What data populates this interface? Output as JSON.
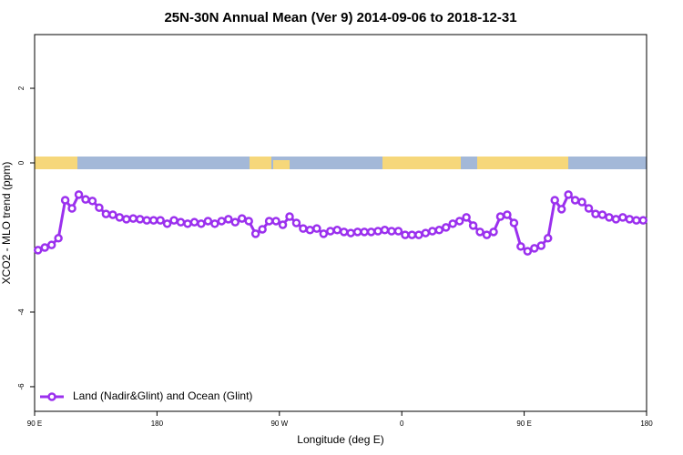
{
  "chart_data": {
    "type": "line",
    "title": "25N-30N Annual Mean (Ver 9)   2014-09-06 to 2018-12-31",
    "x_label": "Longitude (deg E)",
    "y_label": "XCO2 - MLO trend (ppm)",
    "xlim": [
      90,
      540
    ],
    "ylim": [
      -6.66,
      3.44
    ],
    "xticks": [
      {
        "value": 90,
        "label": "90 E"
      },
      180,
      {
        "value": 270,
        "label": "90 W"
      },
      {
        "value": 360,
        "label": "0"
      },
      {
        "value": 450,
        "label": "90 E"
      },
      {
        "value": 540,
        "label": "180"
      }
    ],
    "yticks": [
      -6,
      -4,
      0,
      2
    ],
    "legend_position": "bottom-left",
    "x": [
      92.5,
      97.5,
      102.5,
      107.5,
      112.5,
      117.5,
      122.5,
      127.5,
      132.5,
      137.5,
      142.5,
      147.5,
      152.5,
      157.5,
      162.5,
      167.5,
      172.5,
      177.5,
      182.5,
      187.5,
      192.5,
      197.5,
      202.5,
      207.5,
      212.5,
      217.5,
      222.5,
      227.5,
      232.5,
      237.5,
      242.5,
      247.5,
      252.5,
      257.5,
      262.5,
      267.5,
      272.5,
      277.5,
      282.5,
      287.5,
      292.5,
      297.5,
      302.5,
      307.5,
      312.5,
      317.5,
      322.5,
      327.5,
      332.5,
      337.5,
      342.5,
      347.5,
      352.5,
      357.5,
      362.5,
      367.5,
      372.5,
      377.5,
      382.5,
      387.5,
      392.5,
      397.5,
      402.5,
      407.5,
      412.5,
      417.5,
      422.5,
      427.5,
      432.5,
      437.5,
      442.5,
      447.5,
      452.5,
      457.5,
      462.5,
      467.5,
      472.5,
      477.5,
      482.5,
      487.5,
      492.5,
      497.5,
      502.5,
      507.5,
      512.5,
      517.5,
      522.5,
      527.5,
      532.5,
      537.5
    ],
    "series": [
      {
        "name": "Land (Nadir&Glint) and Ocean (Glint)",
        "color": "#9b30ee",
        "values": [
          -2.34,
          -2.27,
          -2.2,
          -2.02,
          -1.0,
          -1.22,
          -0.85,
          -0.98,
          -1.02,
          -1.2,
          -1.37,
          -1.39,
          -1.46,
          -1.51,
          -1.49,
          -1.51,
          -1.54,
          -1.54,
          -1.54,
          -1.63,
          -1.54,
          -1.59,
          -1.63,
          -1.59,
          -1.63,
          -1.56,
          -1.63,
          -1.56,
          -1.51,
          -1.59,
          -1.49,
          -1.56,
          -1.9,
          -1.78,
          -1.56,
          -1.56,
          -1.66,
          -1.44,
          -1.61,
          -1.76,
          -1.8,
          -1.76,
          -1.9,
          -1.83,
          -1.8,
          -1.85,
          -1.88,
          -1.85,
          -1.85,
          -1.85,
          -1.83,
          -1.8,
          -1.83,
          -1.83,
          -1.93,
          -1.93,
          -1.93,
          -1.88,
          -1.83,
          -1.8,
          -1.73,
          -1.63,
          -1.56,
          -1.46,
          -1.68,
          -1.85,
          -1.93,
          -1.85,
          -1.44,
          -1.39,
          -1.61,
          -2.24,
          -2.37,
          -2.29,
          -2.22,
          -2.02,
          -1.0,
          -1.24,
          -0.85,
          -1.0,
          -1.05,
          -1.22,
          -1.37,
          -1.39,
          -1.46,
          -1.51,
          -1.46,
          -1.51,
          -1.54,
          -1.54
        ]
      }
    ]
  }
}
